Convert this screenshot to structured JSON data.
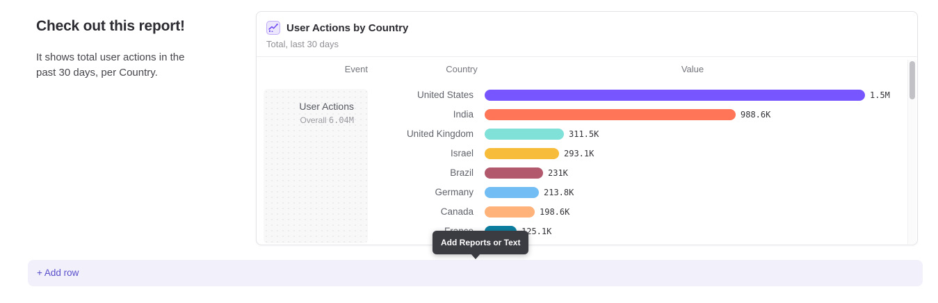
{
  "intro": {
    "title": "Check out this report!",
    "body": "It shows total user actions in the past 30 days, per Country."
  },
  "report_card": {
    "title": "User Actions by Country",
    "subtitle": "Total, last 30 days",
    "icon": "insights-line-chart-icon",
    "columns": [
      "Event",
      "Country",
      "Value"
    ],
    "event": {
      "name": "User Actions",
      "overall_label": "Overall",
      "overall_value": "6.04M"
    }
  },
  "chart_data": {
    "type": "bar",
    "orientation": "horizontal",
    "title": "User Actions by Country",
    "series_name": "User Actions",
    "categories": [
      "United States",
      "India",
      "United Kingdom",
      "Israel",
      "Brazil",
      "Germany",
      "Canada",
      "France"
    ],
    "values": [
      1500000,
      988600,
      311500,
      293100,
      231000,
      213800,
      198600,
      125100
    ],
    "value_labels": [
      "1.5M",
      "988.6K",
      "311.5K",
      "293.1K",
      "231K",
      "213.8K",
      "198.6K",
      "125.1K"
    ],
    "bar_colors": [
      "#7856FF",
      "#FF7557",
      "#80E1D9",
      "#F8BC3B",
      "#B2596E",
      "#72BEF4",
      "#FFB27A",
      "#0D7EA0"
    ],
    "xmax": 1500000,
    "grid": false,
    "legend": false
  },
  "tooltip": {
    "label": "Add Reports or Text"
  },
  "footer": {
    "add_row_label": "+ Add row"
  },
  "colors": {
    "accent": "#7856FF",
    "tooltip_bg": "#3B3B42",
    "add_row_bg": "#F2F0FB",
    "add_row_text": "#584ECB",
    "card_border": "#E3E3E7"
  }
}
